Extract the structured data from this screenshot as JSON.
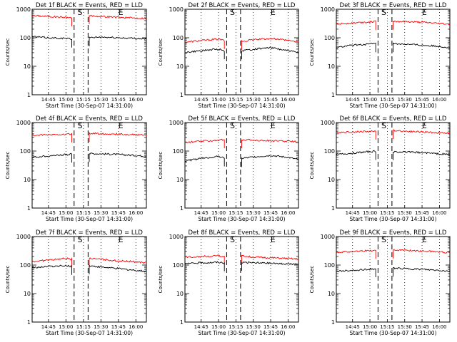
{
  "chart_data": [
    {
      "type": "line",
      "title": "Det 1f BLACK = Events, RED = LLD",
      "xlabel": "Start Time (30-Sep-07 14:31:00)",
      "ylabel": "Counts/sec",
      "yscale": "log",
      "ylim": [
        1,
        1000
      ],
      "x_range": [
        "14:31",
        "16:09"
      ],
      "x_ticks": [
        "14:45",
        "15:00",
        "15:15",
        "15:30",
        "15:45",
        "16:00"
      ],
      "y_ticks": [
        "1",
        "10",
        "100",
        "1000"
      ],
      "markers": [
        {
          "label": "S",
          "time": "15:12"
        },
        {
          "label": "E",
          "time": "15:47"
        }
      ],
      "gap": [
        "15:07",
        "15:19"
      ],
      "series": [
        {
          "color": "#ff0000",
          "segments": [
            {
              "x": [
                "14:31",
                "14:45",
                "15:00",
                "15:05"
              ],
              "y": [
                600,
                560,
                520,
                500
              ]
            },
            {
              "x": [
                "15:20",
                "15:30",
                "15:45",
                "16:00",
                "16:09"
              ],
              "y": [
                600,
                560,
                520,
                490,
                480
              ]
            }
          ]
        },
        {
          "color": "#000000",
          "segments": [
            {
              "x": [
                "14:31",
                "14:45",
                "15:00",
                "15:05"
              ],
              "y": [
                110,
                100,
                95,
                90
              ]
            },
            {
              "x": [
                "15:20",
                "15:30",
                "15:45",
                "16:00",
                "16:09"
              ],
              "y": [
                100,
                105,
                100,
                95,
                92
              ]
            }
          ]
        }
      ]
    },
    {
      "type": "line",
      "title": "Det 2f BLACK = Events, RED = LLD",
      "xlabel": "Start Time (30-Sep-07 14:31:00)",
      "ylabel": "Counts/sec",
      "yscale": "log",
      "ylim": [
        1,
        1000
      ],
      "x_range": [
        "14:31",
        "16:09"
      ],
      "x_ticks": [
        "14:45",
        "15:00",
        "15:15",
        "15:30",
        "15:45",
        "16:00"
      ],
      "y_ticks": [
        "1",
        "10",
        "100",
        "1000"
      ],
      "markers": [
        {
          "label": "S",
          "time": "15:12"
        },
        {
          "label": "E",
          "time": "15:47"
        }
      ],
      "gap": [
        "15:07",
        "15:19"
      ],
      "series": [
        {
          "color": "#ff0000",
          "segments": [
            {
              "x": [
                "14:31",
                "14:45",
                "15:00",
                "15:05"
              ],
              "y": [
                70,
                80,
                90,
                80
              ]
            },
            {
              "x": [
                "15:20",
                "15:30",
                "15:45",
                "16:00",
                "16:09"
              ],
              "y": [
                75,
                85,
                95,
                80,
                70
              ]
            }
          ]
        },
        {
          "color": "#000000",
          "segments": [
            {
              "x": [
                "14:31",
                "14:45",
                "15:00",
                "15:05"
              ],
              "y": [
                30,
                35,
                40,
                35
              ]
            },
            {
              "x": [
                "15:20",
                "15:30",
                "15:45",
                "16:00",
                "16:09"
              ],
              "y": [
                35,
                40,
                45,
                35,
                30
              ]
            }
          ]
        }
      ]
    },
    {
      "type": "line",
      "title": "Det 3f BLACK = Events, RED = LLD",
      "xlabel": "Start Time (30-Sep-07 14:31:00)",
      "ylabel": "Counts/sec",
      "yscale": "log",
      "ylim": [
        1,
        1000
      ],
      "x_range": [
        "14:31",
        "16:09"
      ],
      "x_ticks": [
        "14:45",
        "15:00",
        "15:15",
        "15:30",
        "15:45",
        "16:00"
      ],
      "y_ticks": [
        "1",
        "10",
        "100",
        "1000"
      ],
      "markers": [
        {
          "label": "S",
          "time": "15:12"
        },
        {
          "label": "E",
          "time": "15:47"
        }
      ],
      "gap": [
        "15:07",
        "15:19"
      ],
      "series": [
        {
          "color": "#ff0000",
          "segments": [
            {
              "x": [
                "14:31",
                "14:45",
                "15:00",
                "15:05"
              ],
              "y": [
                300,
                330,
                360,
                370
              ]
            },
            {
              "x": [
                "15:20",
                "15:30",
                "15:45",
                "16:00",
                "16:09"
              ],
              "y": [
                380,
                370,
                350,
                320,
                300
              ]
            }
          ]
        },
        {
          "color": "#000000",
          "segments": [
            {
              "x": [
                "14:31",
                "14:45",
                "15:00",
                "15:05"
              ],
              "y": [
                45,
                55,
                60,
                62
              ]
            },
            {
              "x": [
                "15:20",
                "15:30",
                "15:45",
                "16:00",
                "16:09"
              ],
              "y": [
                62,
                60,
                55,
                50,
                45
              ]
            }
          ]
        }
      ]
    },
    {
      "type": "line",
      "title": "Det 4f BLACK = Events, RED = LLD",
      "xlabel": "Start Time (30-Sep-07 14:31:00)",
      "ylabel": "Counts/sec",
      "yscale": "log",
      "ylim": [
        1,
        1000
      ],
      "x_range": [
        "14:31",
        "16:09"
      ],
      "x_ticks": [
        "14:45",
        "15:00",
        "15:15",
        "15:30",
        "15:45",
        "16:00"
      ],
      "y_ticks": [
        "1",
        "10",
        "100",
        "1000"
      ],
      "markers": [
        {
          "label": "S",
          "time": "15:12"
        },
        {
          "label": "E",
          "time": "15:47"
        }
      ],
      "gap": [
        "15:07",
        "15:19"
      ],
      "series": [
        {
          "color": "#ff0000",
          "segments": [
            {
              "x": [
                "14:31",
                "14:45",
                "15:00",
                "15:05"
              ],
              "y": [
                350,
                370,
                390,
                400
              ]
            },
            {
              "x": [
                "15:20",
                "15:30",
                "15:45",
                "16:00",
                "16:09"
              ],
              "y": [
                420,
                410,
                390,
                370,
                360
              ]
            }
          ]
        },
        {
          "color": "#000000",
          "segments": [
            {
              "x": [
                "14:31",
                "14:45",
                "15:00",
                "15:05"
              ],
              "y": [
                60,
                68,
                75,
                78
              ]
            },
            {
              "x": [
                "15:20",
                "15:30",
                "15:45",
                "16:00",
                "16:09"
              ],
              "y": [
                82,
                80,
                76,
                70,
                65
              ]
            }
          ]
        }
      ]
    },
    {
      "type": "line",
      "title": "Det 5f BLACK = Events, RED = LLD",
      "xlabel": "Start Time (30-Sep-07 14:31:00)",
      "ylabel": "Counts/sec",
      "yscale": "log",
      "ylim": [
        1,
        1000
      ],
      "x_range": [
        "14:31",
        "16:09"
      ],
      "x_ticks": [
        "14:45",
        "15:00",
        "15:15",
        "15:30",
        "15:45",
        "16:00"
      ],
      "y_ticks": [
        "1",
        "10",
        "100",
        "1000"
      ],
      "markers": [
        {
          "label": "S",
          "time": "15:12"
        },
        {
          "label": "E",
          "time": "15:47"
        }
      ],
      "gap": [
        "15:07",
        "15:19"
      ],
      "series": [
        {
          "color": "#ff0000",
          "segments": [
            {
              "x": [
                "14:31",
                "14:45",
                "15:00",
                "15:05"
              ],
              "y": [
                200,
                220,
                240,
                250
              ]
            },
            {
              "x": [
                "15:20",
                "15:30",
                "15:45",
                "16:00",
                "16:09"
              ],
              "y": [
                250,
                240,
                230,
                220,
                210
              ]
            }
          ]
        },
        {
          "color": "#000000",
          "segments": [
            {
              "x": [
                "14:31",
                "14:45",
                "15:00",
                "15:05"
              ],
              "y": [
                45,
                55,
                65,
                58
              ]
            },
            {
              "x": [
                "15:20",
                "15:30",
                "15:45",
                "16:00",
                "16:09"
              ],
              "y": [
                55,
                62,
                70,
                60,
                50
              ]
            }
          ]
        }
      ]
    },
    {
      "type": "line",
      "title": "Det 6f BLACK = Events, RED = LLD",
      "xlabel": "Start Time (30-Sep-07 14:31:00)",
      "ylabel": "Counts/sec",
      "yscale": "log",
      "ylim": [
        1,
        1000
      ],
      "x_range": [
        "14:31",
        "16:09"
      ],
      "x_ticks": [
        "14:45",
        "15:00",
        "15:15",
        "15:30",
        "15:45",
        "16:00"
      ],
      "y_ticks": [
        "1",
        "10",
        "100",
        "1000"
      ],
      "markers": [
        {
          "label": "S",
          "time": "15:12"
        },
        {
          "label": "E",
          "time": "15:47"
        }
      ],
      "gap": [
        "15:07",
        "15:19"
      ],
      "series": [
        {
          "color": "#ff0000",
          "segments": [
            {
              "x": [
                "14:31",
                "14:45",
                "15:00",
                "15:05"
              ],
              "y": [
                450,
                470,
                490,
                500
              ]
            },
            {
              "x": [
                "15:20",
                "15:30",
                "15:45",
                "16:00",
                "16:09"
              ],
              "y": [
                530,
                500,
                470,
                440,
                420
              ]
            }
          ]
        },
        {
          "color": "#000000",
          "segments": [
            {
              "x": [
                "14:31",
                "14:45",
                "15:00",
                "15:05"
              ],
              "y": [
                75,
                85,
                95,
                98
              ]
            },
            {
              "x": [
                "15:20",
                "15:30",
                "15:45",
                "16:00",
                "16:09"
              ],
              "y": [
                95,
                92,
                88,
                80,
                75
              ]
            }
          ]
        }
      ]
    },
    {
      "type": "line",
      "title": "Det 7f BLACK = Events, RED = LLD",
      "xlabel": "Start Time (30-Sep-07 14:31:00)",
      "ylabel": "Counts/sec",
      "yscale": "log",
      "ylim": [
        1,
        1000
      ],
      "x_range": [
        "14:31",
        "16:09"
      ],
      "x_ticks": [
        "14:45",
        "15:00",
        "15:15",
        "15:30",
        "15:45",
        "16:00"
      ],
      "y_ticks": [
        "1",
        "10",
        "100",
        "1000"
      ],
      "markers": [
        {
          "label": "S",
          "time": "15:12"
        },
        {
          "label": "E",
          "time": "15:47"
        }
      ],
      "gap": [
        "15:07",
        "15:19"
      ],
      "series": [
        {
          "color": "#ff0000",
          "segments": [
            {
              "x": [
                "14:31",
                "14:45",
                "15:00",
                "15:05"
              ],
              "y": [
                130,
                150,
                170,
                160
              ]
            },
            {
              "x": [
                "15:20",
                "15:30",
                "15:45",
                "16:00",
                "16:09"
              ],
              "y": [
                170,
                160,
                140,
                130,
                120
              ]
            }
          ]
        },
        {
          "color": "#000000",
          "segments": [
            {
              "x": [
                "14:31",
                "14:45",
                "15:00",
                "15:05"
              ],
              "y": [
                80,
                90,
                95,
                90
              ]
            },
            {
              "x": [
                "15:20",
                "15:30",
                "15:45",
                "16:00",
                "16:09"
              ],
              "y": [
                95,
                85,
                75,
                65,
                60
              ]
            }
          ]
        }
      ]
    },
    {
      "type": "line",
      "title": "Det 8f BLACK = Events, RED = LLD",
      "xlabel": "Start Time (30-Sep-07 14:31:00)",
      "ylabel": "Counts/sec",
      "yscale": "log",
      "ylim": [
        1,
        1000
      ],
      "x_range": [
        "14:31",
        "16:09"
      ],
      "x_ticks": [
        "14:45",
        "15:00",
        "15:15",
        "15:30",
        "15:45",
        "16:00"
      ],
      "y_ticks": [
        "1",
        "10",
        "100",
        "1000"
      ],
      "markers": [
        {
          "label": "S",
          "time": "15:12"
        },
        {
          "label": "E",
          "time": "15:47"
        }
      ],
      "gap": [
        "15:07",
        "15:19"
      ],
      "series": [
        {
          "color": "#ff0000",
          "segments": [
            {
              "x": [
                "14:31",
                "14:45",
                "15:00",
                "15:05"
              ],
              "y": [
                190,
                200,
                210,
                200
              ]
            },
            {
              "x": [
                "15:20",
                "15:30",
                "15:45",
                "16:00",
                "16:09"
              ],
              "y": [
                210,
                190,
                180,
                170,
                160
              ]
            }
          ]
        },
        {
          "color": "#000000",
          "segments": [
            {
              "x": [
                "14:31",
                "14:45",
                "15:00",
                "15:05"
              ],
              "y": [
                110,
                120,
                125,
                120
              ]
            },
            {
              "x": [
                "15:20",
                "15:30",
                "15:45",
                "16:00",
                "16:09"
              ],
              "y": [
                125,
                120,
                115,
                110,
                105
              ]
            }
          ]
        }
      ]
    },
    {
      "type": "line",
      "title": "Det 9f BLACK = Events, RED = LLD",
      "xlabel": "Start Time (30-Sep-07 14:31:00)",
      "ylabel": "Counts/sec",
      "yscale": "log",
      "ylim": [
        1,
        1000
      ],
      "x_range": [
        "14:31",
        "16:09"
      ],
      "x_ticks": [
        "14:45",
        "15:00",
        "15:15",
        "15:30",
        "15:45",
        "16:00"
      ],
      "y_ticks": [
        "1",
        "10",
        "100",
        "1000"
      ],
      "markers": [
        {
          "label": "S",
          "time": "15:12"
        },
        {
          "label": "E",
          "time": "15:47"
        }
      ],
      "gap": [
        "15:07",
        "15:19"
      ],
      "series": [
        {
          "color": "#ff0000",
          "segments": [
            {
              "x": [
                "14:31",
                "14:45",
                "15:00",
                "15:05"
              ],
              "y": [
                280,
                300,
                320,
                330
              ]
            },
            {
              "x": [
                "15:20",
                "15:30",
                "15:45",
                "16:00",
                "16:09"
              ],
              "y": [
                340,
                330,
                310,
                290,
                270
              ]
            }
          ]
        },
        {
          "color": "#000000",
          "segments": [
            {
              "x": [
                "14:31",
                "14:45",
                "15:00",
                "15:05"
              ],
              "y": [
                60,
                65,
                72,
                75
              ]
            },
            {
              "x": [
                "15:20",
                "15:30",
                "15:45",
                "16:00",
                "16:09"
              ],
              "y": [
                78,
                75,
                70,
                65,
                60
              ]
            }
          ]
        }
      ]
    }
  ]
}
